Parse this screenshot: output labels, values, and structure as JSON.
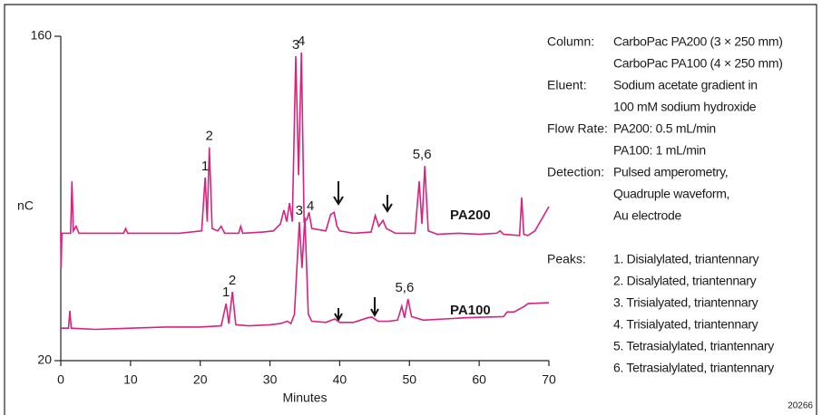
{
  "chart_data": {
    "type": "line",
    "xlabel": "Minutes",
    "ylabel": "nC",
    "xlim": [
      0,
      70
    ],
    "xticks": [
      0,
      10,
      20,
      30,
      40,
      50,
      60,
      70
    ],
    "ylim": [
      20,
      160
    ],
    "yticks": [
      20,
      160
    ],
    "series": [
      {
        "name": "PA200",
        "color": "#d6237e",
        "x": [
          0,
          0.05,
          0.15,
          1.4,
          1.6,
          1.8,
          2.2,
          2.6,
          5,
          9,
          9.3,
          9.6,
          13,
          17,
          20.2,
          20.7,
          21.0,
          21.3,
          21.7,
          22.5,
          23,
          23.5,
          25.5,
          25.8,
          26.1,
          29,
          30.5,
          31.5,
          32.0,
          32.4,
          32.8,
          33.2,
          33.7,
          34.1,
          34.5,
          34.9,
          35.3,
          35.6,
          36,
          38,
          38.7,
          39.2,
          39.6,
          40,
          42,
          44.5,
          45.1,
          45.6,
          46.2,
          46.7,
          48,
          50.8,
          51.4,
          51.8,
          52.2,
          52.7,
          54,
          57,
          60,
          62.5,
          63,
          63.5,
          65.8,
          66.1,
          66.4,
          67,
          68,
          70
        ],
        "values": [
          75.5,
          60,
          75,
          75,
          97.4,
          76,
          78,
          75,
          75,
          75,
          77,
          75,
          75,
          75,
          76,
          99,
          80,
          112,
          77,
          76,
          78,
          75,
          75,
          78,
          75,
          75.5,
          76,
          79,
          85,
          80,
          88,
          80,
          151.4,
          100,
          153,
          80,
          81,
          84,
          77,
          76,
          83,
          84,
          78,
          76,
          75,
          75.5,
          82.6,
          78,
          80.5,
          77,
          75,
          75,
          97.4,
          79,
          104,
          76,
          74.5,
          75,
          74.5,
          75,
          76,
          74.5,
          74,
          90.4,
          74.5,
          74,
          76,
          86.5
        ]
      },
      {
        "name": "PA100",
        "color": "#d6237e",
        "x": [
          0,
          1.1,
          1.3,
          1.5,
          5,
          10,
          15,
          20,
          23,
          23.7,
          24.1,
          24.6,
          25.1,
          27,
          30,
          31.5,
          32.5,
          33,
          33.5,
          34.2,
          34.6,
          35,
          35.5,
          36,
          38,
          39.3,
          40,
          42,
          44,
          44.6,
          45.5,
          47,
          48.3,
          48.9,
          49.3,
          49.8,
          50.3,
          52,
          55,
          58,
          61,
          63.5,
          64,
          65,
          66.5,
          67,
          70
        ],
        "values": [
          34,
          34,
          41.5,
          34,
          33.5,
          34,
          34.5,
          34.5,
          35,
          44.6,
          36,
          49.7,
          35.5,
          35,
          35.5,
          36,
          37,
          36,
          40,
          79.8,
          60,
          81.8,
          40,
          37,
          36.5,
          38,
          36.5,
          36.5,
          38.5,
          38.8,
          37,
          37,
          37.5,
          43.5,
          38.5,
          46.6,
          39,
          37.5,
          38,
          38.5,
          38.8,
          39,
          41,
          41,
          43.5,
          44.6,
          45
        ]
      }
    ],
    "annotations": [
      {
        "text": "1",
        "x": 20.7,
        "y": 99
      },
      {
        "text": "2",
        "x": 21.3,
        "y": 112
      },
      {
        "text": "3",
        "x": 33.7,
        "y": 151.4
      },
      {
        "text": "4",
        "x": 34.5,
        "y": 153
      },
      {
        "text": "5,6",
        "x": 51.8,
        "y": 104
      },
      {
        "text": "1",
        "x": 23.7,
        "y": 44.6
      },
      {
        "text": "2",
        "x": 24.6,
        "y": 49.7
      },
      {
        "text": "3",
        "x": 34.2,
        "y": 79.8
      },
      {
        "text": "4",
        "x": 35.8,
        "y": 81.8
      },
      {
        "text": "5,6",
        "x": 49.3,
        "y": 46.6
      }
    ],
    "notes": [
      {
        "label": "Column:",
        "lines": [
          "CarboPac PA200 (3 × 250 mm)",
          "CarboPac PA100 (4 × 250 mm)"
        ]
      },
      {
        "label": "Eluent:",
        "lines": [
          "Sodium acetate gradient in",
          "100 mM sodium hydroxide"
        ]
      },
      {
        "label": "Flow Rate:",
        "lines": [
          "PA200: 0.5 mL/min",
          "PA100: 1 mL/min"
        ]
      },
      {
        "label": "Detection:",
        "lines": [
          "Pulsed amperometry,",
          "Quadruple waveform,",
          "Au electrode"
        ]
      },
      {
        "label": "Peaks:",
        "lines": [
          "1. Disialylated, triantennary",
          "2. Disalylated, triantennary",
          "3. Trisialyated, triantennary",
          "4. Trisialyated, triantennary",
          "5. Tetrasialylated, triantennary",
          "6. Tetrasialylated, triantennary"
        ]
      }
    ],
    "figure_id": "20266"
  }
}
